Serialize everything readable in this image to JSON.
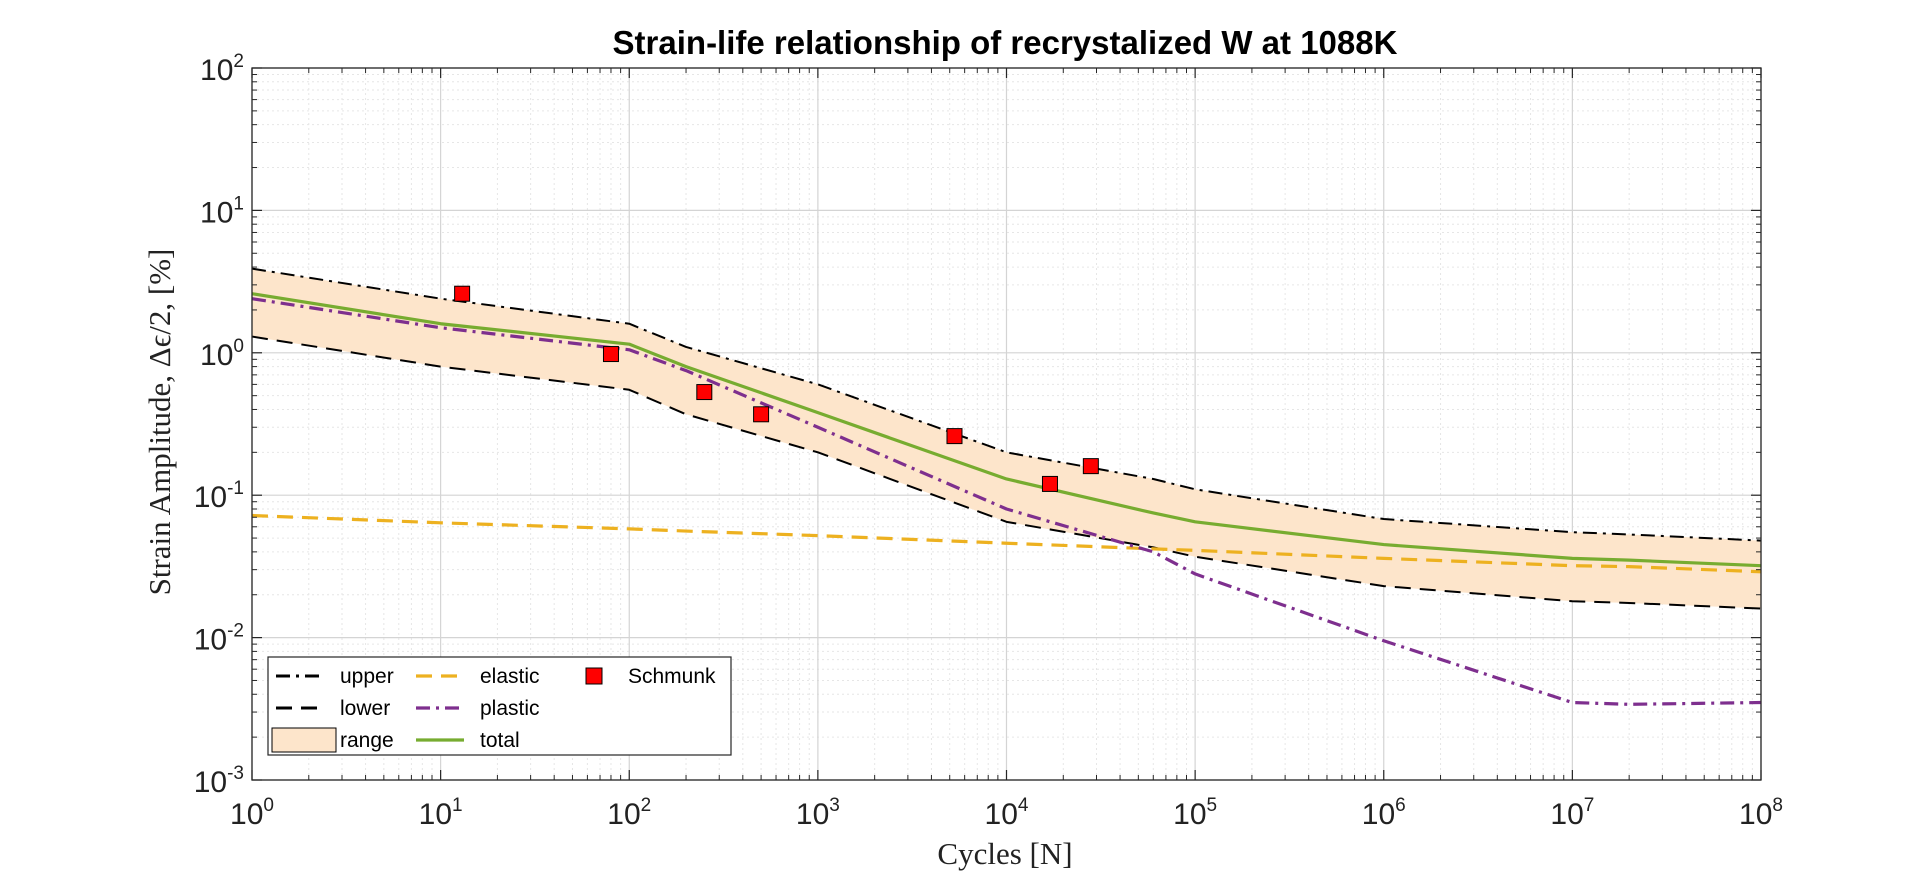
{
  "chart_data": {
    "type": "line",
    "title": "Strain-life relationship of recrystalized W at 1088K",
    "xlabel": "Cycles [N]",
    "ylabel": "Strain Amplitude, Δϵ/2, [%]",
    "xscale": "log",
    "yscale": "log",
    "xlim": [
      1,
      100000000
    ],
    "ylim": [
      0.001,
      100
    ],
    "x_tick_exponents": [
      0,
      1,
      2,
      3,
      4,
      5,
      6,
      7,
      8
    ],
    "y_tick_exponents": [
      -3,
      -2,
      -1,
      0,
      1,
      2
    ],
    "tick_base": "10",
    "grid": true,
    "minor_grid": true,
    "legend_position": "bottom-left",
    "x": [
      1,
      10,
      100,
      200,
      1000,
      10000,
      60000,
      100000,
      1000000,
      10000000,
      20000000,
      100000000
    ],
    "series": [
      {
        "name": "upper",
        "color": "#000000",
        "style": "dash-dot",
        "values": [
          3.9,
          2.4,
          1.6,
          1.1,
          0.6,
          0.2,
          0.13,
          0.11,
          0.068,
          0.055,
          0.053,
          0.048
        ]
      },
      {
        "name": "lower",
        "color": "#000000",
        "style": "dashed",
        "values": [
          1.3,
          0.8,
          0.55,
          0.37,
          0.2,
          0.065,
          0.043,
          0.037,
          0.023,
          0.018,
          0.0175,
          0.016
        ]
      },
      {
        "name": "elastic",
        "color": "#EDB120",
        "style": "dashed",
        "values": [
          0.072,
          0.064,
          0.058,
          0.056,
          0.052,
          0.046,
          0.042,
          0.041,
          0.036,
          0.032,
          0.0315,
          0.029
        ]
      },
      {
        "name": "plastic",
        "color": "#7E2F8E",
        "style": "dash-dot",
        "values": [
          2.4,
          1.5,
          1.05,
          0.75,
          0.3,
          0.08,
          0.04,
          0.028,
          0.0095,
          0.0035,
          0.0034,
          0.0035
        ]
      },
      {
        "name": "total",
        "color": "#77AC30",
        "style": "solid",
        "values": [
          2.6,
          1.6,
          1.15,
          0.8,
          0.38,
          0.13,
          0.075,
          0.065,
          0.045,
          0.036,
          0.035,
          0.032
        ]
      }
    ],
    "range": {
      "name": "range",
      "fill": "#FDE5CB",
      "between": [
        "lower",
        "upper"
      ]
    },
    "scatter": {
      "name": "Schmunk",
      "color": "#FF0000",
      "marker": "square",
      "points": [
        {
          "x": 13,
          "y": 2.6
        },
        {
          "x": 80,
          "y": 0.98
        },
        {
          "x": 250,
          "y": 0.53
        },
        {
          "x": 500,
          "y": 0.37
        },
        {
          "x": 5300,
          "y": 0.26
        },
        {
          "x": 17000,
          "y": 0.12
        },
        {
          "x": 28000,
          "y": 0.16
        }
      ]
    },
    "legend": [
      {
        "label": "upper",
        "kind": "line",
        "ref": "upper"
      },
      {
        "label": "lower",
        "kind": "line",
        "ref": "lower"
      },
      {
        "label": "range",
        "kind": "patch",
        "ref": "range"
      },
      {
        "label": "elastic",
        "kind": "line",
        "ref": "elastic"
      },
      {
        "label": "plastic",
        "kind": "line",
        "ref": "plastic"
      },
      {
        "label": "total",
        "kind": "line",
        "ref": "total"
      },
      {
        "label": "Schmunk",
        "kind": "marker",
        "ref": "scatter"
      }
    ]
  }
}
